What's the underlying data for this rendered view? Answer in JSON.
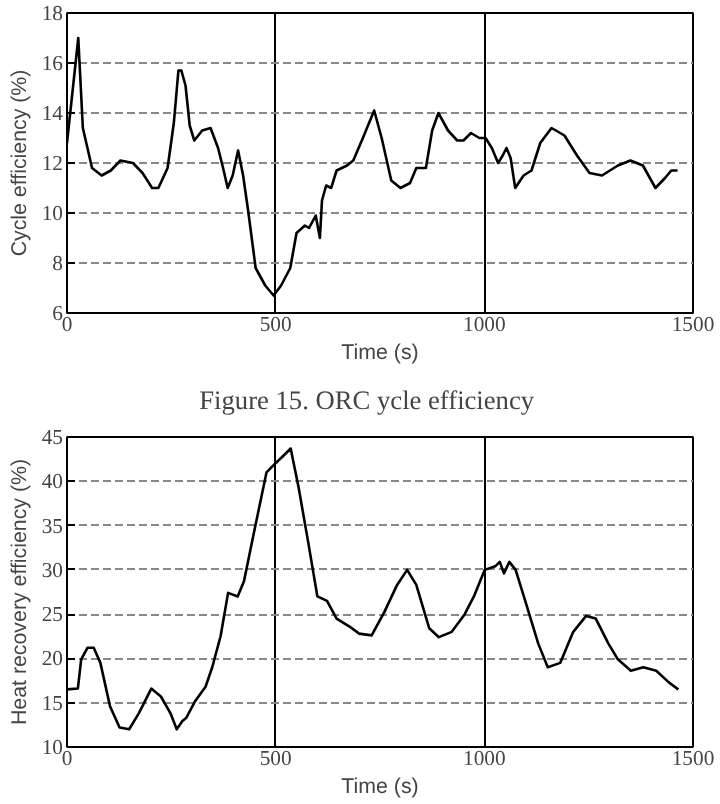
{
  "chart_data": [
    {
      "type": "line",
      "xlabel": "Time (s)",
      "ylabel": "Cycle efficiency (%)",
      "annotations": [
        "Figure 15.     ORC ycle efficiency"
      ],
      "xlim": [
        0,
        1500
      ],
      "xticks": [
        0,
        500,
        1000,
        1500
      ],
      "ylim": [
        6,
        18
      ],
      "yticks": [
        6,
        8,
        10,
        12,
        14,
        16,
        18
      ],
      "grid": true,
      "x": [
        0,
        27,
        38,
        60,
        83,
        105,
        128,
        158,
        181,
        204,
        219,
        241,
        256,
        267,
        274,
        284,
        294,
        305,
        324,
        344,
        362,
        374,
        385,
        397,
        410,
        422,
        434,
        452,
        475,
        495,
        513,
        535,
        550,
        570,
        580,
        596,
        606,
        611,
        621,
        633,
        646,
        671,
        686,
        709,
        736,
        754,
        777,
        799,
        822,
        837,
        860,
        875,
        890,
        913,
        935,
        950,
        968,
        988,
        1003,
        1018,
        1033,
        1044,
        1053,
        1063,
        1074,
        1094,
        1113,
        1134,
        1161,
        1192,
        1222,
        1252,
        1282,
        1320,
        1350,
        1380,
        1410,
        1433,
        1448,
        1463
      ],
      "series": [
        {
          "color": "#000000",
          "values": [
            12.8,
            17.0,
            13.4,
            11.8,
            11.5,
            11.7,
            12.1,
            12.0,
            11.6,
            11.0,
            11.0,
            11.8,
            13.6,
            15.7,
            15.7,
            15.1,
            13.5,
            12.9,
            13.3,
            13.4,
            12.6,
            11.8,
            11.0,
            11.5,
            12.5,
            11.5,
            10.1,
            7.8,
            7.1,
            6.7,
            7.1,
            7.8,
            9.2,
            9.5,
            9.4,
            9.9,
            9.0,
            10.5,
            11.1,
            11.0,
            11.7,
            11.9,
            12.1,
            13.0,
            14.1,
            13.0,
            11.3,
            11.0,
            11.2,
            11.8,
            11.8,
            13.3,
            14.0,
            13.3,
            12.9,
            12.9,
            13.2,
            13.0,
            13.0,
            12.6,
            12.0,
            12.3,
            12.6,
            12.2,
            11.0,
            11.5,
            11.7,
            12.8,
            13.4,
            13.1,
            12.3,
            11.6,
            11.5,
            11.9,
            12.1,
            11.9,
            11.0,
            11.4,
            11.7,
            11.7
          ]
        }
      ]
    },
    {
      "type": "line",
      "xlabel": "Time (s)",
      "ylabel": "Heat recovery efficiency (%)",
      "xlim": [
        0,
        1500
      ],
      "xticks": [
        0,
        500,
        1000,
        1500
      ],
      "ylim": [
        10,
        45
      ],
      "yticks": [
        10,
        15,
        20,
        25,
        30,
        35,
        40,
        45
      ],
      "grid": true,
      "x": [
        0,
        26,
        34,
        49,
        64,
        80,
        103,
        126,
        149,
        172,
        202,
        225,
        248,
        263,
        276,
        286,
        306,
        332,
        348,
        368,
        386,
        409,
        424,
        447,
        478,
        501,
        521,
        536,
        555,
        578,
        600,
        623,
        646,
        677,
        700,
        730,
        760,
        791,
        815,
        837,
        868,
        891,
        922,
        953,
        975,
        1001,
        1026,
        1037,
        1047,
        1060,
        1075,
        1098,
        1129,
        1152,
        1182,
        1213,
        1244,
        1267,
        1297,
        1320,
        1351,
        1381,
        1412,
        1442,
        1465
      ],
      "series": [
        {
          "color": "#000000",
          "values": [
            16.5,
            16.6,
            19.9,
            21.2,
            21.2,
            19.5,
            14.6,
            12.2,
            12.0,
            13.8,
            16.6,
            15.7,
            13.8,
            12.0,
            12.9,
            13.3,
            15.1,
            16.8,
            19.0,
            22.5,
            27.4,
            27.0,
            28.7,
            34.0,
            41.0,
            42.1,
            43.0,
            43.7,
            39.3,
            33.1,
            27.0,
            26.5,
            24.5,
            23.6,
            22.8,
            22.6,
            25.2,
            28.3,
            30.0,
            28.3,
            23.4,
            22.4,
            23.0,
            25.0,
            27.0,
            30.0,
            30.4,
            30.9,
            29.6,
            30.9,
            30.0,
            26.5,
            21.7,
            19.0,
            19.5,
            23.0,
            24.8,
            24.5,
            21.7,
            19.9,
            18.6,
            19.0,
            18.6,
            17.3,
            16.5
          ]
        }
      ]
    }
  ]
}
